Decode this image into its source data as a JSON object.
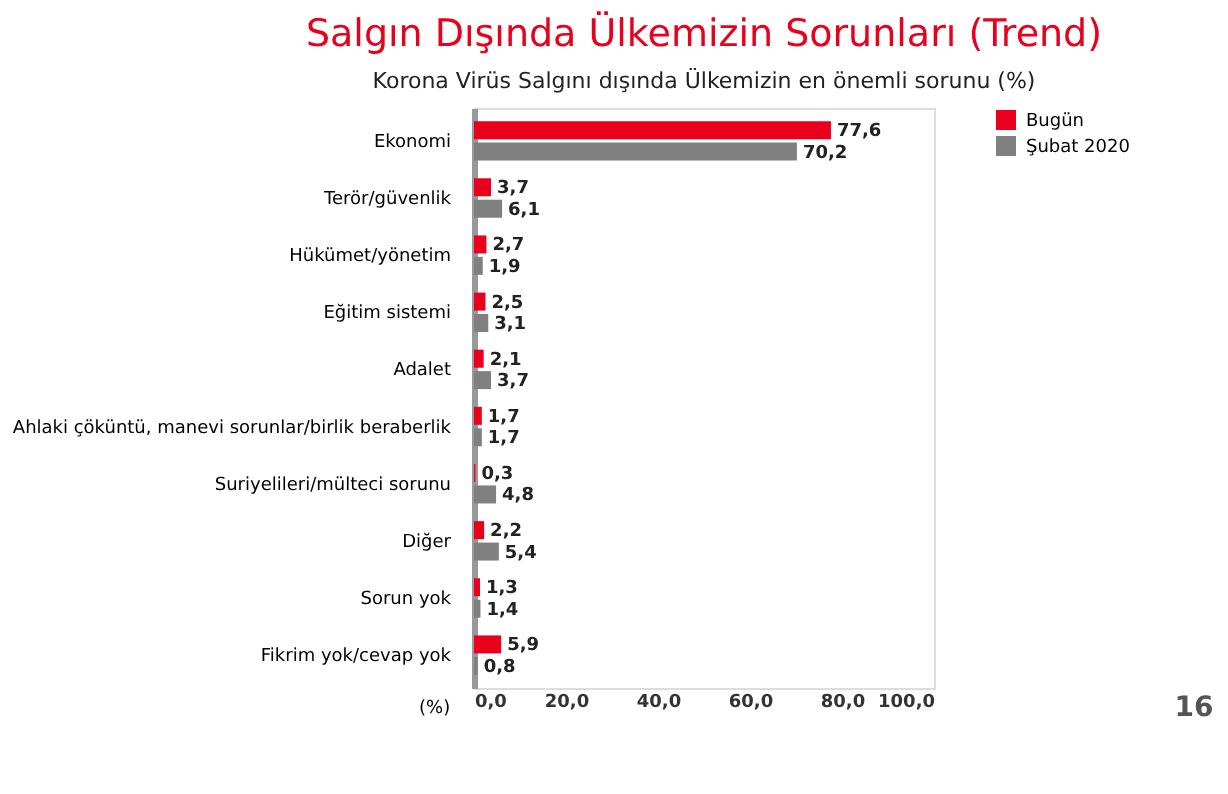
{
  "chart_data": {
    "type": "bar",
    "orientation": "horizontal",
    "title": "Salgın Dışında Ülkemizin Sorunları (Trend)",
    "subtitle": "Korona Virüs Salgını dışında Ülkemizin en önemli sorunu (%)",
    "xlabel": "(%)",
    "categories": [
      "Ekonomi",
      "Terör/güvenlik",
      "Hükümet/yönetim",
      "Eğitim sistemi",
      "Adalet",
      "Ahlaki çöküntü, manevi sorunlar/birlik beraberlik",
      "Suriyelileri/mülteci sorunu",
      "Diğer",
      "Sorun yok",
      "Fikrim yok/cevap yok"
    ],
    "series": [
      {
        "name": "Bugün",
        "color": "#e8001c",
        "values": [
          77.6,
          3.7,
          2.7,
          2.5,
          2.1,
          1.7,
          0.3,
          2.2,
          1.3,
          5.9
        ],
        "value_labels": [
          "77,6",
          "3,7",
          "2,7",
          "2,5",
          "2,1",
          "1,7",
          "0,3",
          "2,2",
          "1,3",
          "5,9"
        ]
      },
      {
        "name": "Şubat 2020",
        "color": "#808080",
        "values": [
          70.2,
          6.1,
          1.9,
          3.1,
          3.7,
          1.7,
          4.8,
          5.4,
          1.4,
          0.8
        ],
        "value_labels": [
          "70,2",
          "6,1",
          "1,9",
          "3,1",
          "3,7",
          "1,7",
          "4,8",
          "5,4",
          "1,4",
          "0,8"
        ]
      }
    ],
    "xlim": [
      0,
      100
    ],
    "xticks": [
      {
        "value": 0,
        "label": "0,0"
      },
      {
        "value": 20,
        "label": "20,0"
      },
      {
        "value": 40,
        "label": "40,0"
      },
      {
        "value": 60,
        "label": "60,0"
      },
      {
        "value": 80,
        "label": "80,0"
      },
      {
        "value": 100,
        "label": "100,0"
      }
    ],
    "grid": false,
    "legend": "right",
    "annotations": [
      "16"
    ]
  }
}
